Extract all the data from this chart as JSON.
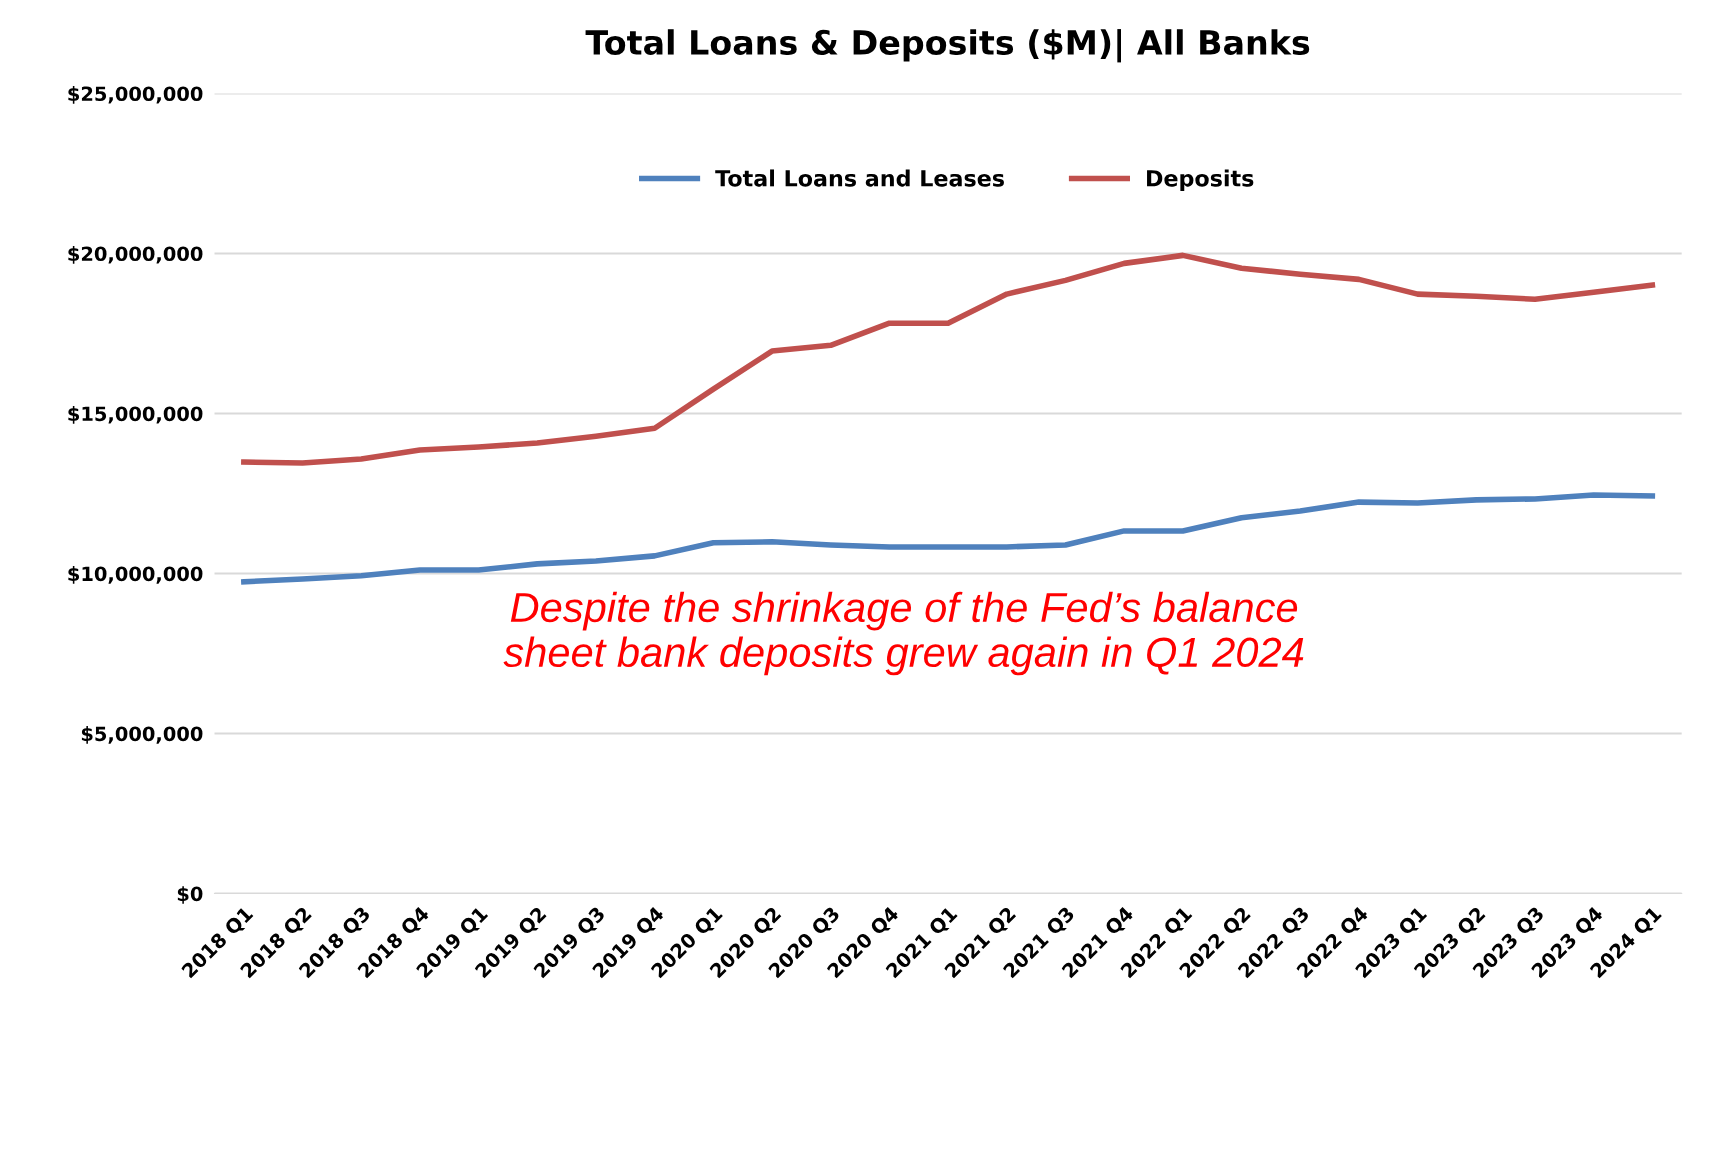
{
  "chart_data": {
    "type": "line",
    "title": "Total Loans & Deposits ($M)| All Banks",
    "categories": [
      "2018 Q1",
      "2018 Q2",
      "2018 Q3",
      "2018 Q4",
      "2019 Q1",
      "2019 Q2",
      "2019 Q3",
      "2019 Q4",
      "2020 Q1",
      "2020 Q2",
      "2020 Q3",
      "2020 Q4",
      "2021 Q1",
      "2021 Q2",
      "2021 Q3",
      "2021 Q4",
      "2022 Q1",
      "2022 Q2",
      "2022 Q3",
      "2022 Q4",
      "2023 Q1",
      "2023 Q2",
      "2023 Q3",
      "2023 Q4",
      "2024 Q1"
    ],
    "series": [
      {
        "name": "Total Loans and Leases",
        "color": "#4f81bd",
        "values": [
          9740000,
          9830000,
          9930000,
          10110000,
          10110000,
          10300000,
          10390000,
          10550000,
          10960000,
          10990000,
          10890000,
          10830000,
          10830000,
          10830000,
          10890000,
          11330000,
          11330000,
          11740000,
          11950000,
          12230000,
          12200000,
          12300000,
          12330000,
          12450000,
          12420000
        ]
      },
      {
        "name": "Deposits",
        "color": "#c0504d",
        "values": [
          13480000,
          13450000,
          13580000,
          13860000,
          13950000,
          14080000,
          14290000,
          14540000,
          15760000,
          16950000,
          17130000,
          17820000,
          17820000,
          18730000,
          19160000,
          19690000,
          19940000,
          19540000,
          19350000,
          19190000,
          18730000,
          18660000,
          18570000,
          18790000,
          19010000
        ]
      }
    ],
    "ylim": [
      0,
      25000000
    ],
    "yticks": [
      {
        "value": 0,
        "label": "$0"
      },
      {
        "value": 5000000,
        "label": "$5,000,000"
      },
      {
        "value": 10000000,
        "label": "$10,000,000"
      },
      {
        "value": 15000000,
        "label": "$15,000,000"
      },
      {
        "value": 20000000,
        "label": "$20,000,000"
      },
      {
        "value": 25000000,
        "label": "$25,000,000"
      }
    ],
    "grid": "y",
    "legend": "top",
    "marker": "none",
    "line_style": "solid",
    "annotations": [
      "Despite the shrinkage of the Fed’s balance\nsheet bank deposits grew again in Q1 2024"
    ]
  }
}
